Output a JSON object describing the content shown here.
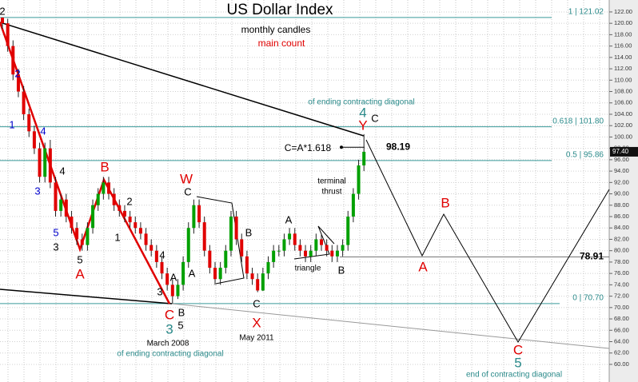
{
  "chart_data": {
    "type": "candlestick",
    "title": "US Dollar Index",
    "subtitle": "monthly candles",
    "count_label": "main count",
    "up_color": "#00a000",
    "down_color": "#e00000",
    "grid": true,
    "ylim": [
      56.9,
      124.1
    ],
    "yticks": [
      {
        "value": 60,
        "label": "60.00"
      },
      {
        "value": 62,
        "label": "62.00"
      },
      {
        "value": 64,
        "label": "64.00"
      },
      {
        "value": 66,
        "label": "66.00"
      },
      {
        "value": 68,
        "label": "68.00"
      },
      {
        "value": 70,
        "label": "70.00"
      },
      {
        "value": 72,
        "label": "72.00"
      },
      {
        "value": 74,
        "label": "74.00"
      },
      {
        "value": 76,
        "label": "76.00"
      },
      {
        "value": 78,
        "label": "78.00"
      },
      {
        "value": 80,
        "label": "80.00"
      },
      {
        "value": 82,
        "label": "82.00"
      },
      {
        "value": 84,
        "label": "84.00"
      },
      {
        "value": 86,
        "label": "86.00"
      },
      {
        "value": 88,
        "label": "88.00"
      },
      {
        "value": 90,
        "label": "90.00"
      },
      {
        "value": 92,
        "label": "92.00"
      },
      {
        "value": 94,
        "label": "94.00"
      },
      {
        "value": 96,
        "label": "96.00"
      },
      {
        "value": 98,
        "label": "98.00"
      },
      {
        "value": 100,
        "label": "100.00"
      },
      {
        "value": 102,
        "label": "102.00"
      },
      {
        "value": 104,
        "label": "104.00"
      },
      {
        "value": 106,
        "label": "106.00"
      },
      {
        "value": 108,
        "label": "108.00"
      },
      {
        "value": 110,
        "label": "110.00"
      },
      {
        "value": 112,
        "label": "112.00"
      },
      {
        "value": 114,
        "label": "114.00"
      },
      {
        "value": 116,
        "label": "116.00"
      },
      {
        "value": 118,
        "label": "118.00"
      },
      {
        "value": 120,
        "label": "120.00"
      },
      {
        "value": 122,
        "label": "122.00"
      }
    ],
    "last_price": {
      "value": 97.4,
      "label": "97.40"
    },
    "levels": [
      {
        "value": 121.02,
        "label": "1 | 121.02"
      },
      {
        "value": 101.8,
        "label": "0.618 | 101.80"
      },
      {
        "value": 95.86,
        "label": "0.5 | 95.86"
      },
      {
        "value": 70.7,
        "label": "0 | 70.70"
      },
      {
        "value": 78.91,
        "label": "78.91"
      },
      {
        "value": 98.19,
        "label": "98.19"
      }
    ],
    "open": [
      121,
      120,
      116,
      111,
      108,
      104,
      101,
      98,
      93,
      98,
      92,
      87,
      89,
      86,
      84,
      82,
      81,
      84,
      88,
      90,
      92,
      90,
      88,
      87,
      86,
      85,
      84,
      83,
      81,
      80,
      78,
      76,
      74,
      72,
      74,
      78,
      84,
      88,
      85,
      80,
      77,
      75,
      77,
      80,
      86,
      82,
      79,
      76,
      75,
      73,
      76,
      78,
      80,
      80,
      82,
      83,
      81,
      80,
      79,
      80,
      82,
      81,
      80,
      79,
      80,
      81,
      86,
      90,
      95
    ],
    "high": [
      121.02,
      120.8,
      117,
      112,
      109,
      105,
      102,
      99,
      99,
      99.5,
      93,
      90,
      90,
      87,
      85,
      83,
      85,
      89,
      91,
      93,
      93,
      91,
      89,
      88,
      87,
      86,
      85,
      84,
      82,
      81,
      79,
      77,
      75,
      75,
      79,
      85,
      89,
      89,
      86,
      81,
      78,
      78,
      81,
      87,
      87,
      83,
      80,
      77,
      76,
      77,
      79,
      81,
      81,
      83,
      84,
      84,
      82,
      81,
      81,
      83,
      83,
      82,
      81,
      81,
      82,
      87,
      91,
      96,
      100.5
    ],
    "low": [
      119,
      115,
      110,
      107,
      103,
      100,
      97,
      92,
      92,
      91,
      86,
      86,
      85,
      83,
      81,
      80,
      80,
      83,
      87,
      89,
      89,
      87,
      86,
      85,
      84,
      83,
      82,
      80,
      79,
      77,
      75,
      73,
      70.7,
      71.5,
      73,
      77,
      83,
      84,
      79,
      76,
      74,
      74,
      76,
      79,
      81,
      78,
      75,
      74,
      72.7,
      72.9,
      75,
      77,
      79,
      79,
      81,
      80,
      79,
      78,
      78,
      79,
      80,
      79,
      78,
      78,
      79,
      80,
      85,
      89,
      94
    ],
    "close": [
      120,
      116,
      111,
      108,
      104,
      101,
      98,
      93,
      98,
      92,
      87,
      89,
      86,
      84,
      82,
      81,
      84,
      88,
      90,
      92,
      90,
      88,
      87,
      86,
      85,
      84,
      83,
      81,
      80,
      78,
      76,
      74,
      72,
      74,
      78,
      84,
      88,
      85,
      80,
      77,
      75,
      77,
      80,
      86,
      82,
      79,
      76,
      75,
      73,
      76,
      78,
      80,
      80,
      82,
      83,
      81,
      80,
      79,
      80,
      82,
      81,
      80,
      79,
      80,
      81,
      86,
      90,
      95,
      97.4
    ],
    "annotations": [
      "of ending contracting diagonal",
      "C=A*1.618",
      "terminal",
      "thrust",
      "triangle",
      "March 2008",
      "of ending contracting diagonal",
      "May 2011",
      "end of contracting diagonal"
    ],
    "wave_labels": [
      "2",
      "2",
      "1",
      "4",
      "3",
      "5",
      "4",
      "3",
      "5",
      "A",
      "B",
      "2",
      "1",
      "4",
      "3",
      "A",
      "A",
      "B",
      "5",
      "C",
      "3",
      "W",
      "C",
      "B",
      "C",
      "X",
      "A",
      "B",
      "4",
      "Y",
      "C",
      "A",
      "B",
      "C",
      "5"
    ]
  }
}
